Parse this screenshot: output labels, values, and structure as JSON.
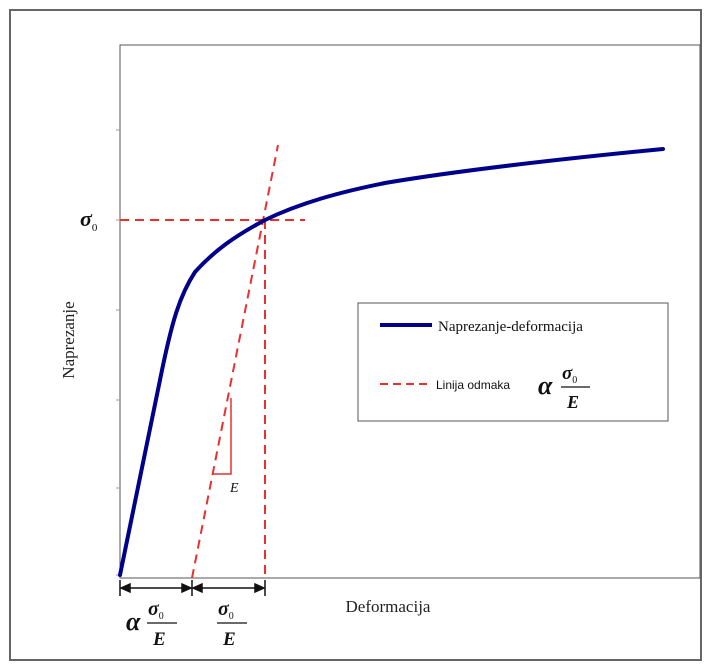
{
  "diagram": {
    "y_axis_label": "Naprezanje",
    "x_axis_label": "Deformacija",
    "sigma_label": "σ",
    "sigma_subscript": "0",
    "alpha_symbol": "α",
    "modulus_symbol": "E",
    "slope_label": "E",
    "legend": {
      "curve_label": "Naprezanje-deformacija",
      "offset_line_label": "Linija odmaka"
    },
    "colors": {
      "curve": "#00008b",
      "offset_line": "#e83030",
      "axes": "#555555",
      "frame": "#666666"
    }
  }
}
